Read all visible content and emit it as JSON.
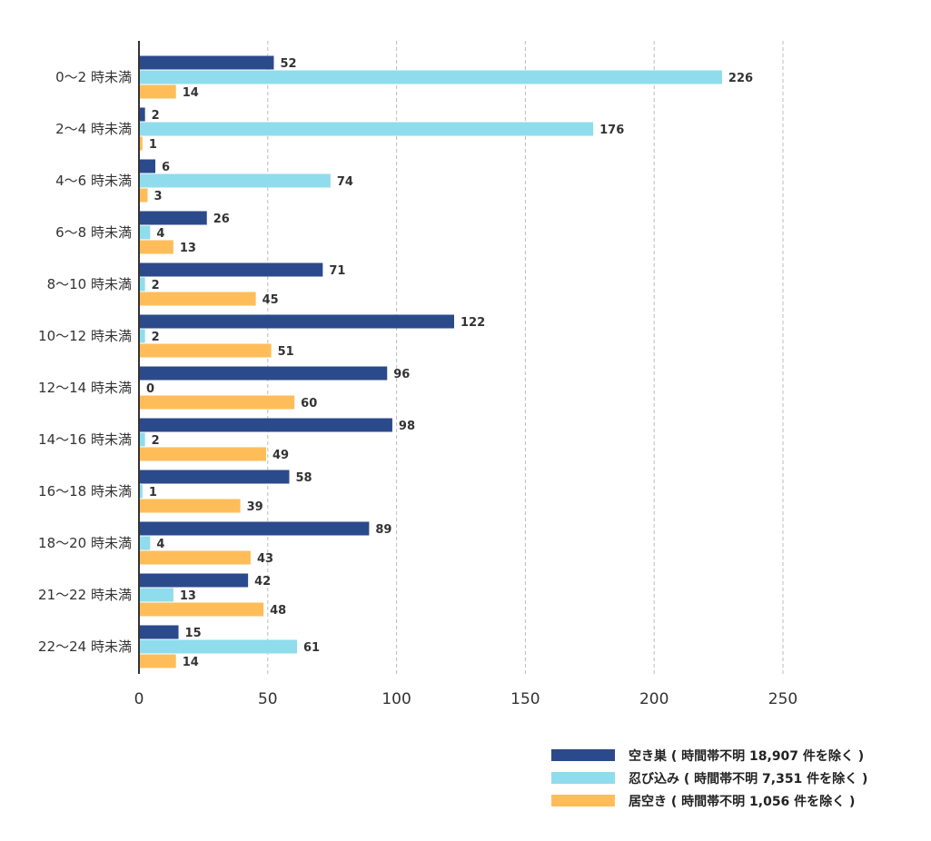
{
  "chart_data": {
    "type": "bar",
    "orientation": "horizontal",
    "categories": [
      "0〜2 時未満",
      "2〜4 時未満",
      "4〜6 時未満",
      "6〜8 時未満",
      "8〜10 時未満",
      "10〜12 時未満",
      "12〜14 時未満",
      "14〜16 時未満",
      "16〜18 時未満",
      "18〜20 時未満",
      "21〜22 時未満",
      "22〜24 時未満"
    ],
    "series": [
      {
        "name": "空き巣 ( 時間帯不明 18,907 件を除く )",
        "color": "#2b4a8b",
        "values": [
          52,
          2,
          6,
          26,
          71,
          122,
          96,
          98,
          58,
          89,
          42,
          15
        ]
      },
      {
        "name": "忍び込み ( 時間帯不明 7,351 件を除く )",
        "color": "#8fdcec",
        "values": [
          226,
          176,
          74,
          4,
          2,
          2,
          0,
          2,
          1,
          4,
          13,
          61
        ]
      },
      {
        "name": "居空き ( 時間帯不明 1,056 件を除く )",
        "color": "#ffbd59",
        "values": [
          14,
          1,
          3,
          13,
          45,
          51,
          60,
          49,
          39,
          43,
          48,
          14
        ]
      }
    ],
    "xlim": [
      0,
      250
    ],
    "xticks": [
      0,
      50,
      100,
      150,
      200,
      250
    ],
    "grid": true,
    "legend": "bottom-right",
    "title": "",
    "xlabel": "",
    "ylabel": ""
  }
}
